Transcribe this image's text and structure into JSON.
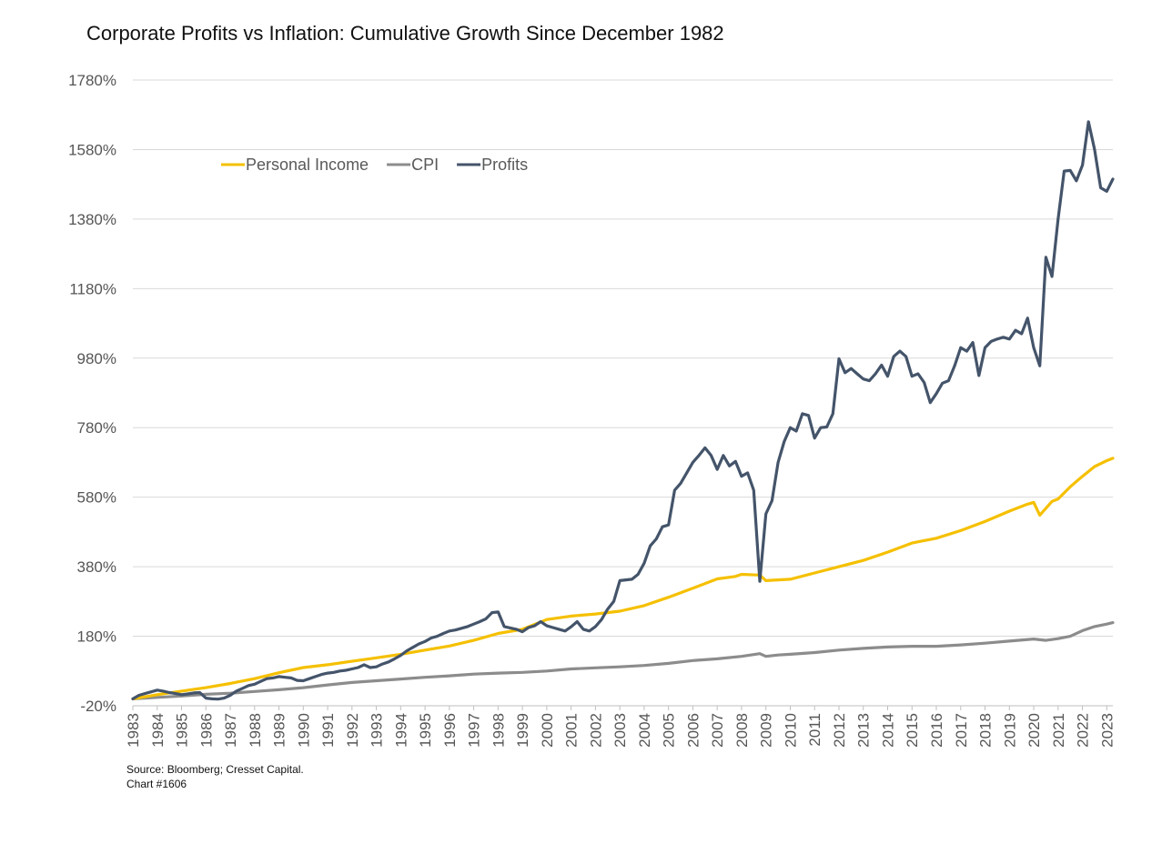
{
  "chart_data": {
    "type": "line",
    "title": "Corporate Profits vs Inflation: Cumulative Growth Since December 1982",
    "xlabel": "",
    "ylabel": "",
    "ylim": [
      -20,
      1780
    ],
    "y_ticks": [
      "-20%",
      "180%",
      "380%",
      "580%",
      "780%",
      "980%",
      "1180%",
      "1380%",
      "1580%",
      "1780%"
    ],
    "x_ticks": [
      "1983",
      "1984",
      "1985",
      "1986",
      "1987",
      "1988",
      "1989",
      "1990",
      "1991",
      "1992",
      "1993",
      "1994",
      "1995",
      "1996",
      "1997",
      "1998",
      "1999",
      "2000",
      "2001",
      "2002",
      "2003",
      "2004",
      "2005",
      "2006",
      "2007",
      "2008",
      "2009",
      "2010",
      "2011",
      "2012",
      "2013",
      "2014",
      "2015",
      "2016",
      "2017",
      "2018",
      "2019",
      "2020",
      "2021",
      "2022",
      "2023"
    ],
    "legend_position": "top-left",
    "grid": "horizontal",
    "series": [
      {
        "name": "Personal Income",
        "color": "#F5C000",
        "points": [
          [
            1983.0,
            0
          ],
          [
            1984.0,
            12
          ],
          [
            1985.0,
            22
          ],
          [
            1986.0,
            32
          ],
          [
            1987.0,
            44
          ],
          [
            1988.0,
            58
          ],
          [
            1989.0,
            75
          ],
          [
            1990.0,
            90
          ],
          [
            1991.0,
            98
          ],
          [
            1992.0,
            108
          ],
          [
            1993.0,
            118
          ],
          [
            1994.0,
            128
          ],
          [
            1995.0,
            140
          ],
          [
            1996.0,
            152
          ],
          [
            1997.0,
            168
          ],
          [
            1998.0,
            188
          ],
          [
            1999.0,
            200
          ],
          [
            2000.0,
            228
          ],
          [
            2001.0,
            238
          ],
          [
            2002.0,
            244
          ],
          [
            2003.0,
            252
          ],
          [
            2004.0,
            268
          ],
          [
            2005.0,
            292
          ],
          [
            2006.0,
            318
          ],
          [
            2007.0,
            345
          ],
          [
            2007.75,
            352
          ],
          [
            2008.0,
            358
          ],
          [
            2008.75,
            356
          ],
          [
            2009.0,
            340
          ],
          [
            2009.5,
            342
          ],
          [
            2010.0,
            344
          ],
          [
            2011.0,
            362
          ],
          [
            2012.0,
            380
          ],
          [
            2013.0,
            398
          ],
          [
            2014.0,
            422
          ],
          [
            2015.0,
            448
          ],
          [
            2016.0,
            462
          ],
          [
            2017.0,
            484
          ],
          [
            2018.0,
            510
          ],
          [
            2019.0,
            540
          ],
          [
            2019.75,
            560
          ],
          [
            2020.0,
            565
          ],
          [
            2020.25,
            528
          ],
          [
            2020.75,
            568
          ],
          [
            2021.0,
            575
          ],
          [
            2021.5,
            610
          ],
          [
            2022.0,
            640
          ],
          [
            2022.5,
            668
          ],
          [
            2023.0,
            685
          ],
          [
            2023.25,
            692
          ]
        ]
      },
      {
        "name": "CPI",
        "color": "#8C8C8C",
        "points": [
          [
            1983.0,
            0
          ],
          [
            1984.0,
            4
          ],
          [
            1985.0,
            8
          ],
          [
            1986.0,
            13
          ],
          [
            1987.0,
            16
          ],
          [
            1988.0,
            21
          ],
          [
            1989.0,
            26
          ],
          [
            1990.0,
            32
          ],
          [
            1991.0,
            40
          ],
          [
            1992.0,
            47
          ],
          [
            1993.0,
            52
          ],
          [
            1994.0,
            57
          ],
          [
            1995.0,
            62
          ],
          [
            1996.0,
            66
          ],
          [
            1997.0,
            71
          ],
          [
            1998.0,
            74
          ],
          [
            1999.0,
            76
          ],
          [
            2000.0,
            80
          ],
          [
            2001.0,
            86
          ],
          [
            2002.0,
            89
          ],
          [
            2003.0,
            92
          ],
          [
            2004.0,
            96
          ],
          [
            2005.0,
            102
          ],
          [
            2006.0,
            110
          ],
          [
            2007.0,
            115
          ],
          [
            2008.0,
            122
          ],
          [
            2008.75,
            130
          ],
          [
            2009.0,
            122
          ],
          [
            2009.5,
            126
          ],
          [
            2010.0,
            128
          ],
          [
            2011.0,
            133
          ],
          [
            2012.0,
            140
          ],
          [
            2013.0,
            145
          ],
          [
            2014.0,
            149
          ],
          [
            2015.0,
            151
          ],
          [
            2016.0,
            151
          ],
          [
            2017.0,
            155
          ],
          [
            2018.0,
            160
          ],
          [
            2019.0,
            166
          ],
          [
            2020.0,
            172
          ],
          [
            2020.5,
            168
          ],
          [
            2021.0,
            173
          ],
          [
            2021.5,
            180
          ],
          [
            2022.0,
            196
          ],
          [
            2022.5,
            208
          ],
          [
            2023.0,
            215
          ],
          [
            2023.25,
            219
          ]
        ]
      },
      {
        "name": "Profits",
        "color": "#44546A",
        "points": [
          [
            1983.0,
            0
          ],
          [
            1983.25,
            10
          ],
          [
            1983.5,
            15
          ],
          [
            1983.75,
            20
          ],
          [
            1984.0,
            25
          ],
          [
            1984.25,
            22
          ],
          [
            1984.5,
            18
          ],
          [
            1984.75,
            15
          ],
          [
            1985.0,
            12
          ],
          [
            1985.25,
            14
          ],
          [
            1985.5,
            17
          ],
          [
            1985.75,
            18
          ],
          [
            1986.0,
            2
          ],
          [
            1986.25,
            0
          ],
          [
            1986.5,
            -1
          ],
          [
            1986.75,
            2
          ],
          [
            1987.0,
            10
          ],
          [
            1987.25,
            22
          ],
          [
            1987.5,
            30
          ],
          [
            1987.75,
            38
          ],
          [
            1988.0,
            42
          ],
          [
            1988.25,
            50
          ],
          [
            1988.5,
            58
          ],
          [
            1988.75,
            60
          ],
          [
            1989.0,
            64
          ],
          [
            1989.25,
            62
          ],
          [
            1989.5,
            60
          ],
          [
            1989.75,
            53
          ],
          [
            1990.0,
            52
          ],
          [
            1990.25,
            58
          ],
          [
            1990.5,
            64
          ],
          [
            1990.75,
            70
          ],
          [
            1991.0,
            74
          ],
          [
            1991.25,
            76
          ],
          [
            1991.5,
            80
          ],
          [
            1991.75,
            82
          ],
          [
            1992.0,
            86
          ],
          [
            1992.25,
            90
          ],
          [
            1992.5,
            98
          ],
          [
            1992.75,
            90
          ],
          [
            1993.0,
            92
          ],
          [
            1993.25,
            100
          ],
          [
            1993.5,
            106
          ],
          [
            1993.75,
            115
          ],
          [
            1994.0,
            125
          ],
          [
            1994.25,
            138
          ],
          [
            1994.5,
            148
          ],
          [
            1994.75,
            158
          ],
          [
            1995.0,
            165
          ],
          [
            1995.25,
            175
          ],
          [
            1995.5,
            180
          ],
          [
            1995.75,
            188
          ],
          [
            1996.0,
            195
          ],
          [
            1996.25,
            198
          ],
          [
            1996.5,
            203
          ],
          [
            1996.75,
            208
          ],
          [
            1997.0,
            215
          ],
          [
            1997.25,
            222
          ],
          [
            1997.5,
            230
          ],
          [
            1997.75,
            248
          ],
          [
            1998.0,
            250
          ],
          [
            1998.25,
            208
          ],
          [
            1998.5,
            204
          ],
          [
            1998.75,
            200
          ],
          [
            1999.0,
            193
          ],
          [
            1999.25,
            205
          ],
          [
            1999.5,
            210
          ],
          [
            1999.75,
            222
          ],
          [
            2000.0,
            210
          ],
          [
            2000.25,
            205
          ],
          [
            2000.5,
            200
          ],
          [
            2000.75,
            195
          ],
          [
            2001.0,
            207
          ],
          [
            2001.25,
            222
          ],
          [
            2001.5,
            200
          ],
          [
            2001.75,
            195
          ],
          [
            2002.0,
            208
          ],
          [
            2002.25,
            228
          ],
          [
            2002.5,
            258
          ],
          [
            2002.75,
            280
          ],
          [
            2003.0,
            340
          ],
          [
            2003.25,
            342
          ],
          [
            2003.5,
            344
          ],
          [
            2003.75,
            358
          ],
          [
            2004.0,
            390
          ],
          [
            2004.25,
            440
          ],
          [
            2004.5,
            460
          ],
          [
            2004.75,
            495
          ],
          [
            2005.0,
            500
          ],
          [
            2005.25,
            600
          ],
          [
            2005.5,
            620
          ],
          [
            2005.75,
            650
          ],
          [
            2006.0,
            680
          ],
          [
            2006.25,
            700
          ],
          [
            2006.5,
            722
          ],
          [
            2006.75,
            700
          ],
          [
            2007.0,
            660
          ],
          [
            2007.25,
            700
          ],
          [
            2007.5,
            670
          ],
          [
            2007.75,
            683
          ],
          [
            2008.0,
            640
          ],
          [
            2008.25,
            650
          ],
          [
            2008.5,
            600
          ],
          [
            2008.75,
            338
          ],
          [
            2009.0,
            532
          ],
          [
            2009.25,
            570
          ],
          [
            2009.5,
            680
          ],
          [
            2009.75,
            740
          ],
          [
            2010.0,
            780
          ],
          [
            2010.25,
            770
          ],
          [
            2010.5,
            820
          ],
          [
            2010.75,
            815
          ],
          [
            2011.0,
            750
          ],
          [
            2011.25,
            780
          ],
          [
            2011.5,
            782
          ],
          [
            2011.75,
            820
          ],
          [
            2012.0,
            978
          ],
          [
            2012.25,
            938
          ],
          [
            2012.5,
            950
          ],
          [
            2012.75,
            935
          ],
          [
            2013.0,
            920
          ],
          [
            2013.25,
            915
          ],
          [
            2013.5,
            935
          ],
          [
            2013.75,
            960
          ],
          [
            2014.0,
            928
          ],
          [
            2014.25,
            985
          ],
          [
            2014.5,
            1000
          ],
          [
            2014.75,
            985
          ],
          [
            2015.0,
            928
          ],
          [
            2015.25,
            935
          ],
          [
            2015.5,
            910
          ],
          [
            2015.75,
            852
          ],
          [
            2016.0,
            878
          ],
          [
            2016.25,
            908
          ],
          [
            2016.5,
            915
          ],
          [
            2016.75,
            958
          ],
          [
            2017.0,
            1010
          ],
          [
            2017.25,
            1000
          ],
          [
            2017.5,
            1025
          ],
          [
            2017.75,
            930
          ],
          [
            2018.0,
            1010
          ],
          [
            2018.25,
            1028
          ],
          [
            2018.5,
            1035
          ],
          [
            2018.75,
            1040
          ],
          [
            2019.0,
            1035
          ],
          [
            2019.25,
            1060
          ],
          [
            2019.5,
            1050
          ],
          [
            2019.75,
            1095
          ],
          [
            2020.0,
            1010
          ],
          [
            2020.25,
            958
          ],
          [
            2020.5,
            1270
          ],
          [
            2020.75,
            1215
          ],
          [
            2021.0,
            1380
          ],
          [
            2021.25,
            1518
          ],
          [
            2021.5,
            1520
          ],
          [
            2021.75,
            1490
          ],
          [
            2022.0,
            1535
          ],
          [
            2022.25,
            1660
          ],
          [
            2022.5,
            1580
          ],
          [
            2022.75,
            1470
          ],
          [
            2023.0,
            1460
          ],
          [
            2023.25,
            1495
          ]
        ]
      }
    ]
  },
  "source": {
    "line1": "Source: Bloomberg; Cresset Capital.",
    "line2": "Chart #1606"
  }
}
